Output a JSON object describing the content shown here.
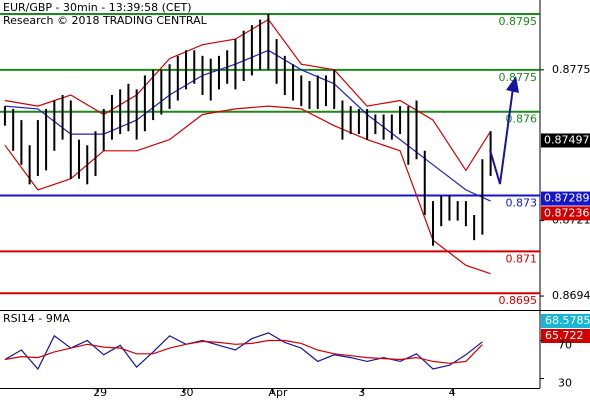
{
  "chart_data": [
    {
      "type": "hlbar",
      "title": "EUR/GBP - 30min - 13:39:58 (CET)",
      "subtitle": "Research © 2018 TRADING CENTRAL",
      "xlim": [
        -0.6,
        65
      ],
      "ylim": [
        0.8689,
        0.88
      ],
      "yticks": [
        0.8775,
        0.8721,
        0.8694
      ],
      "color": "#000000",
      "high": [
        0.8762,
        0.8761,
        0.8757,
        0.8748,
        0.8757,
        0.8761,
        0.8764,
        0.8766,
        0.8764,
        0.875,
        0.8748,
        0.8753,
        0.8761,
        0.8766,
        0.8768,
        0.877,
        0.8768,
        0.8773,
        0.8775,
        0.8775,
        0.8777,
        0.878,
        0.8782,
        0.8782,
        0.878,
        0.8779,
        0.878,
        0.8782,
        0.8786,
        0.8789,
        0.8791,
        0.8793,
        0.8795,
        0.8786,
        0.878,
        0.8777,
        0.8773,
        0.8771,
        0.8773,
        0.8773,
        0.8775,
        0.8764,
        0.8762,
        0.8761,
        0.8761,
        0.8759,
        0.8759,
        0.8759,
        0.8762,
        0.8762,
        0.8764,
        0.8746,
        0.8728,
        0.873,
        0.873,
        0.8728,
        0.8728,
        0.8723,
        0.8743,
        0.8753
      ],
      "low": [
        0.8755,
        0.8746,
        0.8741,
        0.8734,
        0.8737,
        0.8739,
        0.8746,
        0.875,
        0.8736,
        0.8736,
        0.8734,
        0.8737,
        0.8746,
        0.875,
        0.8752,
        0.8753,
        0.875,
        0.8753,
        0.8757,
        0.8759,
        0.8761,
        0.8764,
        0.8768,
        0.877,
        0.8766,
        0.8764,
        0.8768,
        0.877,
        0.8768,
        0.8771,
        0.8773,
        0.8775,
        0.8775,
        0.877,
        0.8766,
        0.8764,
        0.8762,
        0.8761,
        0.8761,
        0.8762,
        0.8761,
        0.875,
        0.8752,
        0.8752,
        0.875,
        0.8752,
        0.875,
        0.875,
        0.8752,
        0.8741,
        0.8743,
        0.8723,
        0.8712,
        0.8719,
        0.8721,
        0.8721,
        0.8719,
        0.8714,
        0.8716,
        0.8737
      ],
      "overlay_x": [
        0,
        4,
        8,
        12,
        16,
        20,
        24,
        28,
        32,
        36,
        40,
        44,
        48,
        52,
        56,
        59
      ],
      "overlays": [
        {
          "color": "#d00000",
          "values": [
            0.8764,
            0.8762,
            0.8766,
            0.8759,
            0.8766,
            0.8779,
            0.8784,
            0.8786,
            0.8793,
            0.8777,
            0.8775,
            0.8762,
            0.8764,
            0.8757,
            0.8739,
            0.8753
          ]
        },
        {
          "color": "#d00000",
          "values": [
            0.8748,
            0.8732,
            0.8736,
            0.8746,
            0.8746,
            0.875,
            0.8759,
            0.8761,
            0.8762,
            0.8761,
            0.8755,
            0.875,
            0.8746,
            0.8714,
            0.8705,
            0.8702
          ]
        },
        {
          "color": "#1f1fc8",
          "values": [
            0.8762,
            0.8761,
            0.8752,
            0.8752,
            0.8757,
            0.8766,
            0.8773,
            0.8777,
            0.8782,
            0.8775,
            0.877,
            0.8759,
            0.875,
            0.8741,
            0.8732,
            0.8728
          ]
        }
      ],
      "levels": [
        {
          "value": 0.8795,
          "color": "#1a8a1a"
        },
        {
          "value": 0.8775,
          "color": "#1a8a1a"
        },
        {
          "value": 0.876,
          "color": "#1a8a1a"
        },
        {
          "value": 0.873,
          "color": "#1414c8"
        },
        {
          "value": 0.871,
          "color": "#d00000"
        },
        {
          "value": 0.8695,
          "color": "#d00000"
        }
      ],
      "price_labels": [
        {
          "value": 0.87497,
          "color": "#000000"
        },
        {
          "value": 0.87289,
          "color": "#1414c8"
        },
        {
          "value": 0.87236,
          "color": "#d00000"
        }
      ]
    },
    {
      "type": "line",
      "title": "RSI14 - 9MA",
      "x": [
        0,
        2,
        4,
        6,
        8,
        10,
        12,
        14,
        16,
        18,
        20,
        22,
        24,
        26,
        28,
        30,
        32,
        34,
        36,
        38,
        40,
        42,
        44,
        46,
        48,
        50,
        52,
        54,
        56,
        58
      ],
      "xlim": [
        -0.6,
        65
      ],
      "ylim": [
        20,
        100
      ],
      "xticks": [
        {
          "value": 11.2,
          "label": "29"
        },
        {
          "value": 21.7,
          "label": "30"
        },
        {
          "value": 32.5,
          "label": "Apr"
        },
        {
          "value": 43.4,
          "label": "3"
        },
        {
          "value": 54.4,
          "label": "4"
        }
      ],
      "yticks": [
        70,
        30
      ],
      "series": [
        {
          "color": "#1414a0",
          "values": [
            50,
            60,
            40,
            75,
            62,
            70,
            55,
            65,
            42,
            58,
            75,
            66,
            70,
            65,
            60,
            72,
            78,
            68,
            62,
            48,
            55,
            52,
            48,
            52,
            48,
            56,
            40,
            44,
            55,
            68.6
          ]
        },
        {
          "color": "#d00000",
          "values": [
            50,
            53,
            52,
            58,
            62,
            66,
            63,
            62,
            56,
            56,
            62,
            66,
            69,
            68,
            66,
            67,
            70,
            70,
            67,
            60,
            56,
            54,
            52,
            51,
            50,
            52,
            48,
            46,
            48,
            65.7
          ]
        }
      ],
      "value_labels": [
        {
          "value": 68.5785,
          "color": "#19b7d6"
        },
        {
          "value": 65.722,
          "color": "#d00000"
        }
      ]
    }
  ]
}
